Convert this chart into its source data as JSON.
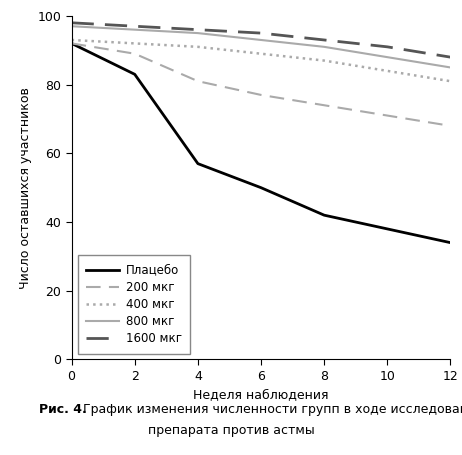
{
  "weeks": [
    0,
    2,
    4,
    6,
    8,
    10,
    12
  ],
  "placebo": [
    92,
    83,
    57,
    50,
    42,
    38,
    34
  ],
  "mcg200": [
    92,
    89,
    81,
    77,
    74,
    71,
    68
  ],
  "mcg400": [
    93,
    92,
    91,
    89,
    87,
    84,
    81
  ],
  "mcg800": [
    97,
    96,
    95,
    93,
    91,
    88,
    85
  ],
  "mcg1600": [
    98,
    97,
    96,
    95,
    93,
    91,
    88
  ],
  "legend_labels": [
    "Плацебо",
    "200 мкг",
    "400 мкг",
    "800 мкг",
    "1600 мкг"
  ],
  "ylabel": "Число оставшихся участников",
  "xlabel": "Неделя наблюдения",
  "caption_bold": "Рис. 4.",
  "caption_rest": " График изменения численности групп в ходе исследования",
  "caption_line2": "препарата против астмы",
  "ylim": [
    0,
    100
  ],
  "xlim": [
    0,
    12
  ],
  "xticks": [
    0,
    2,
    4,
    6,
    8,
    10,
    12
  ],
  "yticks": [
    0,
    20,
    40,
    60,
    80,
    100
  ],
  "line_color_placebo": "#000000",
  "line_color_200": "#aaaaaa",
  "line_color_400": "#aaaaaa",
  "line_color_800": "#aaaaaa",
  "line_color_1600": "#555555",
  "background_color": "#ffffff",
  "font_size_axis_label": 9,
  "font_size_tick": 9,
  "font_size_legend": 8.5,
  "font_size_caption": 9
}
